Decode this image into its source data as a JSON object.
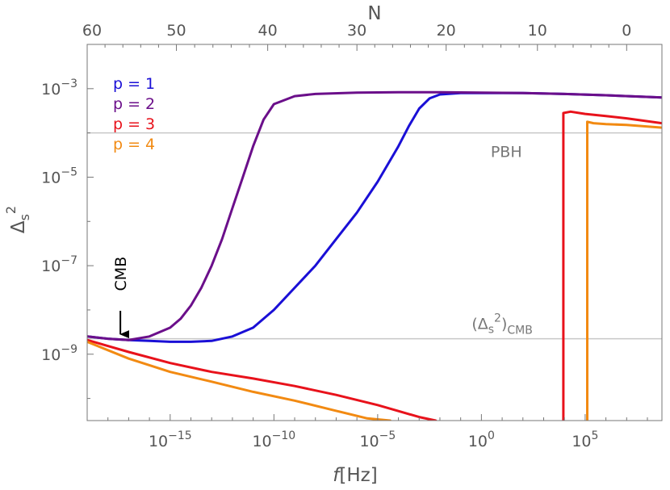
{
  "chart_data": {
    "type": "line",
    "xlabel_italic": "f",
    "xlabel_rest": "[Hz]",
    "ylabel_main": "Δ",
    "ylabel_sub": "s",
    "ylabel_sup": "2",
    "top_axis_label": "N",
    "x_scale": "log",
    "y_scale": "log",
    "xlim_log10": [
      -19,
      8.7
    ],
    "ylim_log10": [
      -10.5,
      -2
    ],
    "top_axis_ticks": [
      {
        "label": "60",
        "x_log10": -19.0
      },
      {
        "label": "50",
        "x_log10": -14.7
      },
      {
        "label": "40",
        "x_log10": -10.3
      },
      {
        "label": "30",
        "x_log10": -6.0
      },
      {
        "label": "20",
        "x_log10": -1.7
      },
      {
        "label": "10",
        "x_log10": 2.7
      },
      {
        "label": "0",
        "x_log10": 7.0
      }
    ],
    "x_ticks": [
      {
        "base": "10",
        "exp": "−15",
        "x_log10": -15
      },
      {
        "base": "10",
        "exp": "−10",
        "x_log10": -10
      },
      {
        "base": "10",
        "exp": "−5",
        "x_log10": -5
      },
      {
        "base": "10",
        "exp": "0",
        "x_log10": 0
      },
      {
        "base": "10",
        "exp": "5",
        "x_log10": 5
      }
    ],
    "y_ticks": [
      {
        "base": "10",
        "exp": "−3",
        "y_log10": -3
      },
      {
        "base": "10",
        "exp": "−5",
        "y_log10": -5
      },
      {
        "base": "10",
        "exp": "−7",
        "y_log10": -7
      },
      {
        "base": "10",
        "exp": "−9",
        "y_log10": -9
      }
    ],
    "reference_lines": [
      {
        "y_log10": -4,
        "label": "PBH",
        "label_x_log10": 1.2,
        "color": "#c8c8c8"
      },
      {
        "y_log10": -8.65,
        "label": "(Δ_s^2)_CMB",
        "label_x_log10": 1.0,
        "color": "#c8c8c8"
      }
    ],
    "ref_label_cmb": {
      "open": "(Δ",
      "sub": "s",
      "sup": "2",
      "close": ")",
      "tail": "CMB"
    },
    "annotation": {
      "text": "CMB",
      "x_log10": -17.4,
      "y_log10": -7.0,
      "arrow_to_y_log10": -8.55
    },
    "legend": {
      "placement": "top-left"
    },
    "series": [
      {
        "name": "p = 1",
        "color": "#1a0fd6",
        "x": [
          -19,
          -18,
          -17,
          -16,
          -15,
          -14,
          -13,
          -12,
          -11,
          -10,
          -9,
          -8,
          -7,
          -6,
          -5,
          -4,
          -3.5,
          -3,
          -2.5,
          -2,
          -1,
          0,
          2,
          4,
          6,
          8.7
        ],
        "y": [
          -8.6,
          -8.65,
          -8.68,
          -8.7,
          -8.72,
          -8.72,
          -8.7,
          -8.6,
          -8.4,
          -8.0,
          -7.5,
          -7.0,
          -6.4,
          -5.8,
          -5.1,
          -4.3,
          -3.85,
          -3.45,
          -3.22,
          -3.13,
          -3.1,
          -3.1,
          -3.1,
          -3.12,
          -3.15,
          -3.2
        ]
      },
      {
        "name": "p = 2",
        "color": "#6b0f8a",
        "x": [
          -19,
          -18,
          -17,
          -16,
          -15,
          -14.5,
          -14,
          -13.5,
          -13,
          -12.5,
          -12,
          -11.5,
          -11,
          -10.5,
          -10,
          -9,
          -8,
          -6,
          -4,
          -2,
          0,
          2,
          4,
          6,
          8.7
        ],
        "y": [
          -8.6,
          -8.65,
          -8.68,
          -8.6,
          -8.4,
          -8.2,
          -7.9,
          -7.5,
          -7.0,
          -6.4,
          -5.7,
          -5.0,
          -4.3,
          -3.7,
          -3.35,
          -3.17,
          -3.12,
          -3.09,
          -3.08,
          -3.08,
          -3.09,
          -3.1,
          -3.12,
          -3.15,
          -3.2
        ]
      },
      {
        "name": "p = 3",
        "color": "#e8121b",
        "x": [
          -19,
          -17,
          -15,
          -13,
          -11,
          -9,
          -7,
          -5,
          -3,
          -2.2
        ],
        "y": [
          -8.68,
          -8.95,
          -9.2,
          -9.4,
          -9.55,
          -9.72,
          -9.92,
          -10.15,
          -10.42,
          -10.5
        ],
        "segments": [
          {
            "x": [
              3.95,
              3.95,
              4.3,
              5.0,
              6.0,
              7.0,
              8.7
            ],
            "y": [
              -10.5,
              -3.55,
              -3.52,
              -3.57,
              -3.62,
              -3.67,
              -3.78
            ]
          }
        ]
      },
      {
        "name": "p = 4",
        "color": "#f28a12",
        "x": [
          -19,
          -17,
          -15,
          -13,
          -11,
          -9,
          -7,
          -5.5,
          -4.4
        ],
        "y": [
          -8.72,
          -9.1,
          -9.4,
          -9.62,
          -9.85,
          -10.05,
          -10.28,
          -10.45,
          -10.5
        ],
        "segments": [
          {
            "x": [
              5.1,
              5.1,
              5.4,
              6.0,
              7.0,
              8.7
            ],
            "y": [
              -10.5,
              -3.75,
              -3.78,
              -3.8,
              -3.82,
              -3.88
            ]
          }
        ]
      }
    ]
  }
}
